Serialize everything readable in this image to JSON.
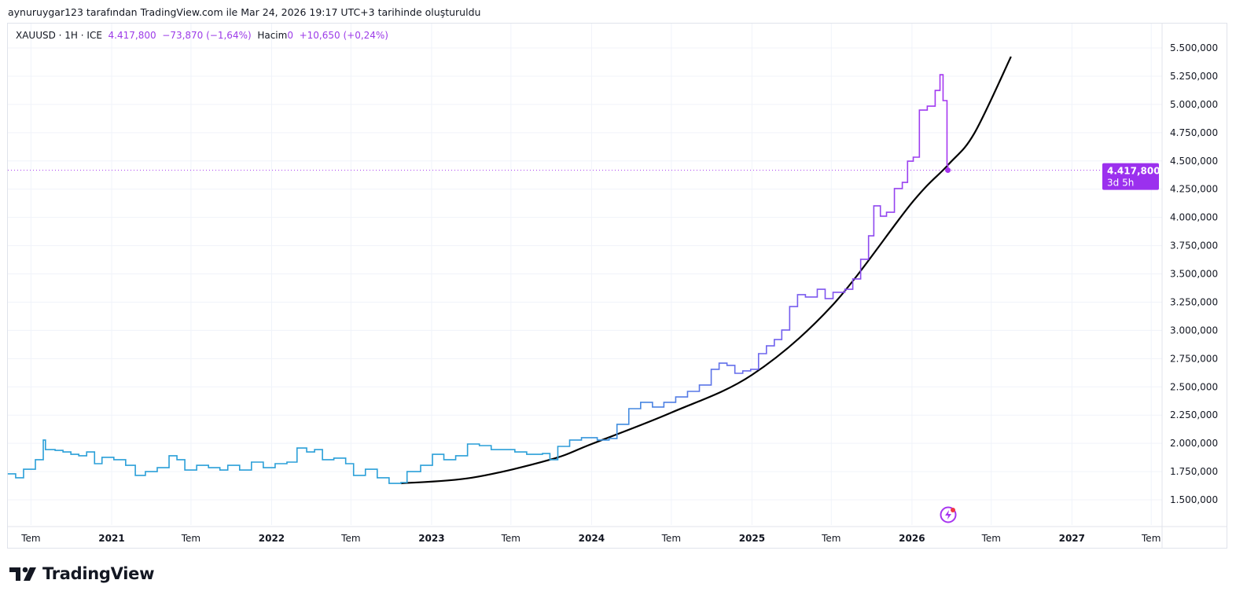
{
  "caption": "aynuruygar123 tarafından TradingView.com ile Mar 24, 2026 19:17 UTC+3 tarihinde oluşturuldu",
  "legend": {
    "symbol": "XAUUSD · 1H · ICE",
    "price": "4.417,800",
    "change": "−73,870 (−1,64%)",
    "volume_label": "Hacim",
    "volume_value": "0",
    "volume_change": "+10,650 (+0,24%)"
  },
  "price_tag": {
    "value": "4.417,800",
    "countdown": "3d 5h"
  },
  "brand": "TradingView",
  "colors": {
    "line_start": "#2a9fd8",
    "line_mid": "#6f63ee",
    "line_end": "#a735f0",
    "curve": "#000000",
    "price_tag": "#9b30ee"
  },
  "icons": [
    "tradingview-logo-icon",
    "lightning-event-icon"
  ],
  "chart_data": {
    "type": "line",
    "line_style": "step",
    "grid": true,
    "ylim": [
      1350000,
      5600000
    ],
    "y_ticks": [
      "1.500,000",
      "1.750,000",
      "2.000,000",
      "2.250,000",
      "2.500,000",
      "2.750,000",
      "3.000,000",
      "3.250,000",
      "3.500,000",
      "3.750,000",
      "4.000,000",
      "4.250,000",
      "4.500,000",
      "4.750,000",
      "5.000,000",
      "5.250,000",
      "5.500,000"
    ],
    "y_tick_values": [
      1500000,
      1750000,
      2000000,
      2250000,
      2500000,
      2750000,
      3000000,
      3250000,
      3500000,
      3750000,
      4000000,
      4250000,
      4500000,
      4750000,
      5000000,
      5250000,
      5500000
    ],
    "x_ticks": [
      {
        "label": "Tem",
        "date": "2020-07-01",
        "major": false
      },
      {
        "label": "2021",
        "date": "2021-01-01",
        "major": true
      },
      {
        "label": "Tem",
        "date": "2021-07-01",
        "major": false
      },
      {
        "label": "2022",
        "date": "2022-01-01",
        "major": true
      },
      {
        "label": "Tem",
        "date": "2022-07-01",
        "major": false
      },
      {
        "label": "2023",
        "date": "2023-01-01",
        "major": true
      },
      {
        "label": "Tem",
        "date": "2023-07-01",
        "major": false
      },
      {
        "label": "2024",
        "date": "2024-01-01",
        "major": true
      },
      {
        "label": "Tem",
        "date": "2024-07-01",
        "major": false
      },
      {
        "label": "2025",
        "date": "2025-01-01",
        "major": true
      },
      {
        "label": "Tem",
        "date": "2025-07-01",
        "major": false
      },
      {
        "label": "2026",
        "date": "2026-01-01",
        "major": true
      },
      {
        "label": "Tem",
        "date": "2026-07-01",
        "major": false
      },
      {
        "label": "2027",
        "date": "2027-01-01",
        "major": true
      },
      {
        "label": "Tem",
        "date": "2027-07-01",
        "major": false
      }
    ],
    "last_price": 4417800,
    "series": [
      {
        "points": [
          [
            "2020-05-09",
            1730000
          ],
          [
            "2020-05-27",
            1695000
          ],
          [
            "2020-06-14",
            1771000
          ],
          [
            "2020-07-11",
            1855000
          ],
          [
            "2020-07-29",
            2029000
          ],
          [
            "2020-08-03",
            1945000
          ],
          [
            "2020-08-25",
            1938000
          ],
          [
            "2020-09-12",
            1924000
          ],
          [
            "2020-09-30",
            1903000
          ],
          [
            "2020-10-18",
            1890000
          ],
          [
            "2020-11-05",
            1924000
          ],
          [
            "2020-11-23",
            1820000
          ],
          [
            "2020-12-10",
            1876000
          ],
          [
            "2021-01-06",
            1855000
          ],
          [
            "2021-02-02",
            1806000
          ],
          [
            "2021-02-24",
            1716000
          ],
          [
            "2021-03-19",
            1750000
          ],
          [
            "2021-04-15",
            1785000
          ],
          [
            "2021-05-12",
            1890000
          ],
          [
            "2021-05-30",
            1855000
          ],
          [
            "2021-06-17",
            1764000
          ],
          [
            "2021-07-14",
            1806000
          ],
          [
            "2021-08-10",
            1785000
          ],
          [
            "2021-09-05",
            1764000
          ],
          [
            "2021-09-23",
            1806000
          ],
          [
            "2021-10-20",
            1764000
          ],
          [
            "2021-11-16",
            1834000
          ],
          [
            "2021-12-13",
            1785000
          ],
          [
            "2022-01-09",
            1820000
          ],
          [
            "2022-02-05",
            1834000
          ],
          [
            "2022-02-28",
            1959000
          ],
          [
            "2022-03-22",
            1924000
          ],
          [
            "2022-04-09",
            1945000
          ],
          [
            "2022-04-27",
            1855000
          ],
          [
            "2022-05-23",
            1869000
          ],
          [
            "2022-06-19",
            1820000
          ],
          [
            "2022-07-07",
            1716000
          ],
          [
            "2022-08-03",
            1771000
          ],
          [
            "2022-08-30",
            1695000
          ],
          [
            "2022-09-26",
            1646000
          ],
          [
            "2022-10-23",
            1653000
          ],
          [
            "2022-11-06",
            1750000
          ],
          [
            "2022-12-07",
            1806000
          ],
          [
            "2023-01-03",
            1903000
          ],
          [
            "2023-01-29",
            1855000
          ],
          [
            "2023-02-25",
            1890000
          ],
          [
            "2023-03-24",
            1994000
          ],
          [
            "2023-04-20",
            1980000
          ],
          [
            "2023-05-17",
            1945000
          ],
          [
            "2023-06-13",
            1945000
          ],
          [
            "2023-07-10",
            1924000
          ],
          [
            "2023-08-06",
            1903000
          ],
          [
            "2023-09-11",
            1910000
          ],
          [
            "2023-09-28",
            1855000
          ],
          [
            "2023-10-16",
            1973000
          ],
          [
            "2023-11-12",
            2029000
          ],
          [
            "2023-12-09",
            2050000
          ],
          [
            "2024-01-14",
            2029000
          ],
          [
            "2024-02-10",
            2043000
          ],
          [
            "2024-02-28",
            2168000
          ],
          [
            "2024-03-26",
            2307000
          ],
          [
            "2024-04-22",
            2363000
          ],
          [
            "2024-05-19",
            2321000
          ],
          [
            "2024-06-14",
            2363000
          ],
          [
            "2024-07-11",
            2411000
          ],
          [
            "2024-08-07",
            2460000
          ],
          [
            "2024-09-03",
            2516000
          ],
          [
            "2024-09-30",
            2655000
          ],
          [
            "2024-10-18",
            2710000
          ],
          [
            "2024-11-05",
            2690000
          ],
          [
            "2024-11-23",
            2620000
          ],
          [
            "2024-12-11",
            2641000
          ],
          [
            "2024-12-29",
            2655000
          ],
          [
            "2025-01-16",
            2794000
          ],
          [
            "2025-02-03",
            2863000
          ],
          [
            "2025-02-21",
            2919000
          ],
          [
            "2025-03-10",
            3003000
          ],
          [
            "2025-03-28",
            3211000
          ],
          [
            "2025-04-15",
            3316000
          ],
          [
            "2025-05-03",
            3295000
          ],
          [
            "2025-05-30",
            3364000
          ],
          [
            "2025-06-17",
            3281000
          ],
          [
            "2025-07-05",
            3337000
          ],
          [
            "2025-08-01",
            3364000
          ],
          [
            "2025-08-19",
            3455000
          ],
          [
            "2025-09-06",
            3629000
          ],
          [
            "2025-09-24",
            3837000
          ],
          [
            "2025-10-06",
            4102000
          ],
          [
            "2025-10-21",
            4011000
          ],
          [
            "2025-11-04",
            4046000
          ],
          [
            "2025-11-22",
            4255000
          ],
          [
            "2025-12-10",
            4310000
          ],
          [
            "2025-12-22",
            4498000
          ],
          [
            "2026-01-04",
            4533000
          ],
          [
            "2026-01-18",
            4950000
          ],
          [
            "2026-02-05",
            4985000
          ],
          [
            "2026-02-23",
            5124000
          ],
          [
            "2026-03-06",
            5263000
          ],
          [
            "2026-03-13",
            5034000
          ],
          [
            "2026-03-22",
            4463000
          ],
          [
            "2026-03-24",
            4417800
          ]
        ]
      }
    ],
    "curve": [
      [
        "2022-10-23",
        1646000
      ],
      [
        "2023-04-02",
        1695000
      ],
      [
        "2023-09-28",
        1855000
      ],
      [
        "2024-01-01",
        1994000
      ],
      [
        "2024-07-01",
        2272000
      ],
      [
        "2025-01-01",
        2606000
      ],
      [
        "2025-07-01",
        3211000
      ],
      [
        "2026-01-01",
        4130000
      ],
      [
        "2026-03-24",
        4463000
      ],
      [
        "2026-05-23",
        4742000
      ],
      [
        "2026-08-15",
        5423000
      ]
    ]
  }
}
